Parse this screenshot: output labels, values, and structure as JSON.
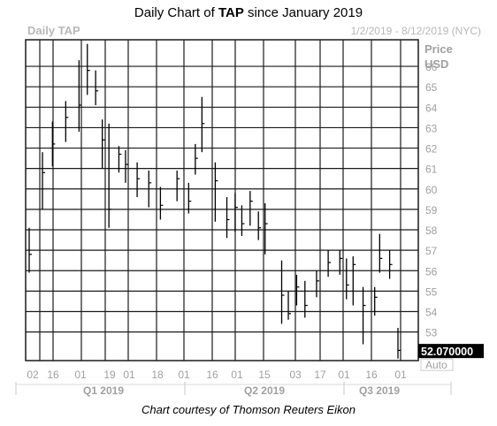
{
  "header": {
    "title_prefix": "Daily Chart of ",
    "ticker": "TAP",
    "title_suffix": " since January 2019"
  },
  "footer": {
    "credit": "Chart courtesy of Thomson Reuters Eikon"
  },
  "chart_data": {
    "type": "ohlc",
    "chart_label": "Daily TAP",
    "date_range": "1/2/2019 - 8/12/2019 (NYC)",
    "price_label": "Price",
    "currency_label": "USD",
    "last_price": "52.070000",
    "scale_mode": "Auto",
    "ylim": [
      51.6,
      67.3
    ],
    "y_ticks": [
      53,
      54,
      55,
      56,
      57,
      58,
      59,
      60,
      61,
      62,
      63,
      64,
      65,
      66
    ],
    "x_tick_labels": [
      "02",
      "16",
      "01",
      "19",
      "01",
      "18",
      "01",
      "16",
      "01",
      "15",
      "01",
      "16",
      "03",
      "17",
      "01",
      "16",
      "01"
    ],
    "periods": [
      "Q1 2019",
      "Q2 2019",
      "Q3 2019"
    ],
    "grid": true,
    "legend": "none",
    "colors": {
      "bars": "#000000",
      "grid": "#1a1a1a",
      "faint_text": "#b8b8b8",
      "axis_text": "#a0a0a0",
      "last_price_bg": "#000000"
    },
    "x": [
      "2019-01-02",
      "2019-01-10",
      "2019-01-16",
      "2019-01-24",
      "2019-02-01",
      "2019-02-06",
      "2019-02-11",
      "2019-02-15",
      "2019-02-19",
      "2019-02-25",
      "2019-03-01",
      "2019-03-08",
      "2019-03-15",
      "2019-03-22",
      "2019-04-01",
      "2019-04-08",
      "2019-04-12",
      "2019-04-16",
      "2019-04-24",
      "2019-05-01",
      "2019-05-06",
      "2019-05-10",
      "2019-05-15",
      "2019-05-20",
      "2019-05-24",
      "2019-06-03",
      "2019-06-07",
      "2019-06-12",
      "2019-06-17",
      "2019-06-24",
      "2019-07-01",
      "2019-07-08",
      "2019-07-12",
      "2019-07-16",
      "2019-07-22",
      "2019-07-29",
      "2019-08-01",
      "2019-08-07",
      "2019-08-12"
    ],
    "close": [
      56.8,
      60.8,
      62.2,
      63.5,
      64.1,
      65.8,
      64.8,
      62.4,
      59.0,
      61.7,
      61.2,
      60.5,
      60.3,
      59.2,
      60.5,
      59.4,
      61.5,
      63.2,
      60.4,
      58.5,
      59.1,
      58.3,
      59.4,
      58.1,
      58.3,
      54.8,
      53.9,
      55.2,
      54.3,
      55.5,
      56.4,
      56.6,
      55.3,
      56.3,
      54.3,
      54.7,
      56.6,
      56.3,
      52.1
    ],
    "high": [
      58.1,
      61.8,
      63.3,
      64.3,
      66.3,
      67.1,
      65.8,
      63.4,
      63.2,
      62.1,
      61.9,
      61.3,
      60.9,
      60.1,
      60.9,
      60.3,
      62.2,
      64.5,
      61.3,
      59.6,
      59.8,
      59.2,
      59.9,
      58.9,
      59.3,
      56.5,
      55.0,
      55.8,
      55.5,
      56.0,
      57.0,
      57.0,
      56.6,
      56.7,
      55.2,
      55.2,
      57.8,
      57.0,
      53.2
    ],
    "low": [
      55.9,
      59.0,
      61.1,
      62.3,
      62.8,
      64.6,
      64.1,
      61.0,
      58.1,
      60.8,
      60.3,
      59.6,
      59.1,
      58.5,
      59.4,
      58.8,
      60.7,
      61.8,
      58.4,
      57.6,
      57.9,
      57.7,
      58.2,
      57.5,
      56.8,
      53.4,
      53.6,
      54.3,
      53.7,
      54.7,
      55.7,
      55.8,
      54.6,
      54.3,
      52.4,
      53.8,
      55.9,
      55.6,
      51.7
    ]
  }
}
